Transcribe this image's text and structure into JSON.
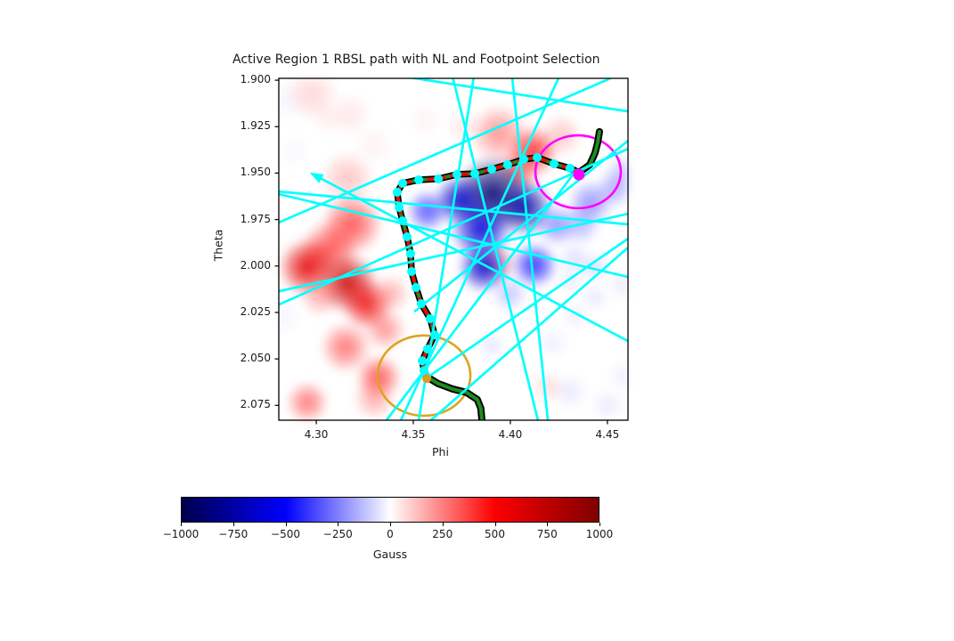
{
  "title": "Active Region 1 RBSL path with NL and Footpoint Selection",
  "axes": {
    "xlabel": "Phi",
    "ylabel": "Theta"
  },
  "colorbar_label": "Gauss",
  "chart_data": {
    "type": "heatmap",
    "title": "Active Region 1 RBSL path with NL and Footpoint Selection",
    "xlabel": "Phi",
    "ylabel": "Theta",
    "xlim": [
      4.2807,
      4.4606
    ],
    "ylim": [
      1.899,
      2.083
    ],
    "y_inverted": true,
    "xticks": [
      {
        "v": 4.3,
        "label": "4.30"
      },
      {
        "v": 4.35,
        "label": "4.35"
      },
      {
        "v": 4.4,
        "label": "4.40"
      },
      {
        "v": 4.45,
        "label": "4.45"
      }
    ],
    "yticks": [
      {
        "v": 1.9,
        "label": "1.900"
      },
      {
        "v": 1.925,
        "label": "1.925"
      },
      {
        "v": 1.95,
        "label": "1.950"
      },
      {
        "v": 1.975,
        "label": "1.975"
      },
      {
        "v": 2.0,
        "label": "2.000"
      },
      {
        "v": 2.025,
        "label": "2.025"
      },
      {
        "v": 2.05,
        "label": "2.050"
      },
      {
        "v": 2.075,
        "label": "2.075"
      }
    ],
    "colorbar": {
      "label": "Gauss",
      "min": -1000,
      "max": 1000,
      "colormap": "seismic",
      "stops": [
        "#00004C",
        "#0000FF",
        "#FFFFFF",
        "#FF0000",
        "#7F0000"
      ],
      "ticks": [
        {
          "v": -1000,
          "label": "−1000"
        },
        {
          "v": -750,
          "label": "−750"
        },
        {
          "v": -500,
          "label": "−500"
        },
        {
          "v": -250,
          "label": "−250"
        },
        {
          "v": 0,
          "label": "0"
        },
        {
          "v": 250,
          "label": "250"
        },
        {
          "v": 500,
          "label": "500"
        },
        {
          "v": 750,
          "label": "750"
        },
        {
          "v": 1000,
          "label": "1000"
        }
      ]
    },
    "colors": {
      "field_line": "#00FFFF",
      "rbsl_outline": "#000000",
      "rbsl_core": "#1E8C1E",
      "nl_dash": "#FF0000",
      "nl_marker": "#00FFFF",
      "footpoint_circle_1": "#FF00FF",
      "footpoint_circle_2": "#DAA520",
      "footpoint_dot_1": "#FF00FF",
      "footpoint_dot_2": "#E09820"
    },
    "magnetic_blobs": [
      [
        4.2977,
        1.9071,
        0.0064,
        200
      ],
      [
        4.3174,
        1.9182,
        0.005,
        150
      ],
      [
        4.306,
        1.9201,
        0.0041,
        120
      ],
      [
        4.3298,
        1.9349,
        0.005,
        100
      ],
      [
        4.3564,
        1.9215,
        0.0041,
        100
      ],
      [
        4.3757,
        1.9249,
        0.0041,
        150
      ],
      [
        4.316,
        1.9526,
        0.0064,
        250
      ],
      [
        4.3183,
        1.9775,
        0.0073,
        450
      ],
      [
        4.3069,
        1.991,
        0.0069,
        450
      ],
      [
        4.2954,
        2.0005,
        0.0069,
        600
      ],
      [
        4.316,
        2.0092,
        0.0073,
        700
      ],
      [
        4.3261,
        2.0207,
        0.006,
        550
      ],
      [
        4.3023,
        2.0159,
        0.005,
        300
      ],
      [
        4.338,
        2.0149,
        0.0046,
        300
      ],
      [
        4.3353,
        2.0341,
        0.005,
        350
      ],
      [
        4.3151,
        2.0437,
        0.006,
        400
      ],
      [
        4.3321,
        2.06,
        0.0055,
        450
      ],
      [
        4.2954,
        2.0734,
        0.005,
        400
      ],
      [
        4.3298,
        2.0715,
        0.005,
        300
      ],
      [
        4.394,
        1.9287,
        0.0069,
        350
      ],
      [
        4.4115,
        1.9383,
        0.006,
        500
      ],
      [
        4.4041,
        1.9488,
        0.005,
        400
      ],
      [
        4.4262,
        1.9297,
        0.005,
        250
      ],
      [
        4.394,
        1.9982,
        0.0046,
        300
      ],
      [
        4.4193,
        2.0652,
        0.0041,
        180
      ],
      [
        4.3908,
        1.9613,
        0.0092,
        -900
      ],
      [
        4.4069,
        1.9685,
        0.0069,
        -750
      ],
      [
        4.3739,
        1.9646,
        0.006,
        -650
      ],
      [
        4.3849,
        1.9804,
        0.0073,
        -600
      ],
      [
        4.3863,
        2.0006,
        0.006,
        -650
      ],
      [
        4.4124,
        1.9996,
        0.0055,
        -500
      ],
      [
        4.3573,
        1.9704,
        0.005,
        -450
      ],
      [
        4.4239,
        1.978,
        0.005,
        -350
      ],
      [
        4.3996,
        2.0149,
        0.0041,
        -250
      ],
      [
        4.4413,
        1.9661,
        0.0055,
        -350
      ],
      [
        4.4537,
        1.9584,
        0.0046,
        -300
      ],
      [
        4.4363,
        1.978,
        0.0046,
        -280
      ],
      [
        4.4583,
        1.9493,
        0.0041,
        -250
      ],
      [
        4.4331,
        1.9958,
        0.0037,
        -180
      ],
      [
        4.4432,
        2.0006,
        0.0037,
        -180
      ],
      [
        4.4308,
        2.0078,
        0.0032,
        -150
      ],
      [
        4.4436,
        2.0169,
        0.0032,
        -150
      ],
      [
        4.4335,
        2.0264,
        0.0032,
        -140
      ],
      [
        4.4308,
        2.0676,
        0.0041,
        -140
      ],
      [
        4.4501,
        2.0748,
        0.0037,
        -140
      ],
      [
        4.4583,
        2.0595,
        0.0037,
        -120
      ],
      [
        4.3904,
        2.0427,
        0.0032,
        -160
      ],
      [
        4.4216,
        2.0413,
        0.0037,
        -120
      ],
      [
        4.4583,
        2.0102,
        0.0037,
        -140
      ],
      [
        4.2839,
        1.9105,
        0.005,
        -80
      ],
      [
        4.2821,
        2.027,
        0.0046,
        -90
      ],
      [
        4.2885,
        1.9383,
        0.0041,
        -60
      ]
    ],
    "field_lines": [
      {
        "p": [
          4.2986,
          1.9508,
          4.4606,
          2.0404
        ],
        "arrow_at_start": true
      },
      {
        "p": [
          4.2807,
          1.9599,
          4.4606,
          1.9776
        ]
      },
      {
        "p": [
          4.2807,
          1.9613,
          4.4606,
          2.0059
        ]
      },
      {
        "p": [
          4.2807,
          2.0136,
          4.4606,
          1.9719
        ]
      },
      {
        "p": [
          4.4537,
          1.898,
          4.2807,
          1.9766
        ]
      },
      {
        "p": [
          4.3702,
          1.898,
          4.4142,
          2.083
        ]
      },
      {
        "p": [
          4.3812,
          1.898,
          4.3528,
          2.083
        ]
      },
      {
        "p": [
          4.4252,
          1.898,
          4.3436,
          2.083
        ]
      },
      {
        "p": [
          4.3362,
          2.083,
          4.4344,
          1.9479
        ]
      },
      {
        "p": [
          4.4606,
          1.9853,
          4.3564,
          2.0606
        ]
      },
      {
        "p": [
          4.4606,
          1.9901,
          4.3591,
          2.083
        ]
      },
      {
        "p": [
          4.4009,
          1.898,
          4.4193,
          2.083
        ]
      },
      {
        "p": [
          4.2807,
          2.0208,
          4.4606,
          1.9369
        ]
      },
      {
        "p": [
          4.3505,
          2.0246,
          4.4606,
          1.9326
        ]
      },
      {
        "p": [
          4.345,
          1.898,
          4.4606,
          1.9168
        ]
      }
    ],
    "rbsl_path": [
      [
        4.4353,
        1.9503
      ],
      [
        4.4307,
        1.9474
      ],
      [
        4.4225,
        1.945
      ],
      [
        4.4138,
        1.9416
      ],
      [
        4.4069,
        1.9426
      ],
      [
        4.3986,
        1.9455
      ],
      [
        4.3904,
        1.9479
      ],
      [
        4.3817,
        1.9503
      ],
      [
        4.3725,
        1.9507
      ],
      [
        4.3629,
        1.9531
      ],
      [
        4.3528,
        1.9536
      ],
      [
        4.3445,
        1.9555
      ],
      [
        4.3417,
        1.9603
      ],
      [
        4.3427,
        1.9685
      ],
      [
        4.3445,
        1.9757
      ],
      [
        4.3468,
        1.9843
      ],
      [
        4.3486,
        1.9934
      ],
      [
        4.3491,
        2.003
      ],
      [
        4.3514,
        2.0116
      ],
      [
        4.3541,
        2.0203
      ],
      [
        4.3587,
        2.0284
      ],
      [
        4.361,
        2.0371
      ],
      [
        4.3573,
        2.0447
      ],
      [
        4.3546,
        2.051
      ],
      [
        4.3555,
        2.0563
      ],
      [
        4.3569,
        2.0596
      ]
    ],
    "green_extensions": [
      [
        [
          4.3569,
          2.0596
        ],
        [
          4.3628,
          2.0633
        ],
        [
          4.3702,
          2.0662
        ],
        [
          4.3775,
          2.0681
        ],
        [
          4.383,
          2.0719
        ],
        [
          4.3848,
          2.0767
        ],
        [
          4.3853,
          2.0825
        ]
      ],
      [
        [
          4.4307,
          1.9474
        ],
        [
          4.4353,
          1.9498
        ],
        [
          4.4409,
          1.9455
        ],
        [
          4.4436,
          1.9392
        ],
        [
          4.445,
          1.9335
        ],
        [
          4.4459,
          1.9277
        ]
      ]
    ],
    "selection_circles": [
      {
        "cx": 4.4349,
        "cy": 1.9493,
        "rx": 0.022,
        "ry": 0.0196,
        "color": "#FF00FF"
      },
      {
        "cx": 4.3555,
        "cy": 2.059,
        "rx": 0.0239,
        "ry": 0.0216,
        "color": "#DAA520"
      }
    ],
    "footpoint_markers": [
      {
        "x": 4.4353,
        "y": 1.9508,
        "color": "#FF00FF",
        "r": 6.5
      },
      {
        "x": 4.3569,
        "y": 2.0606,
        "color": "#E09820",
        "r": 5
      }
    ]
  }
}
